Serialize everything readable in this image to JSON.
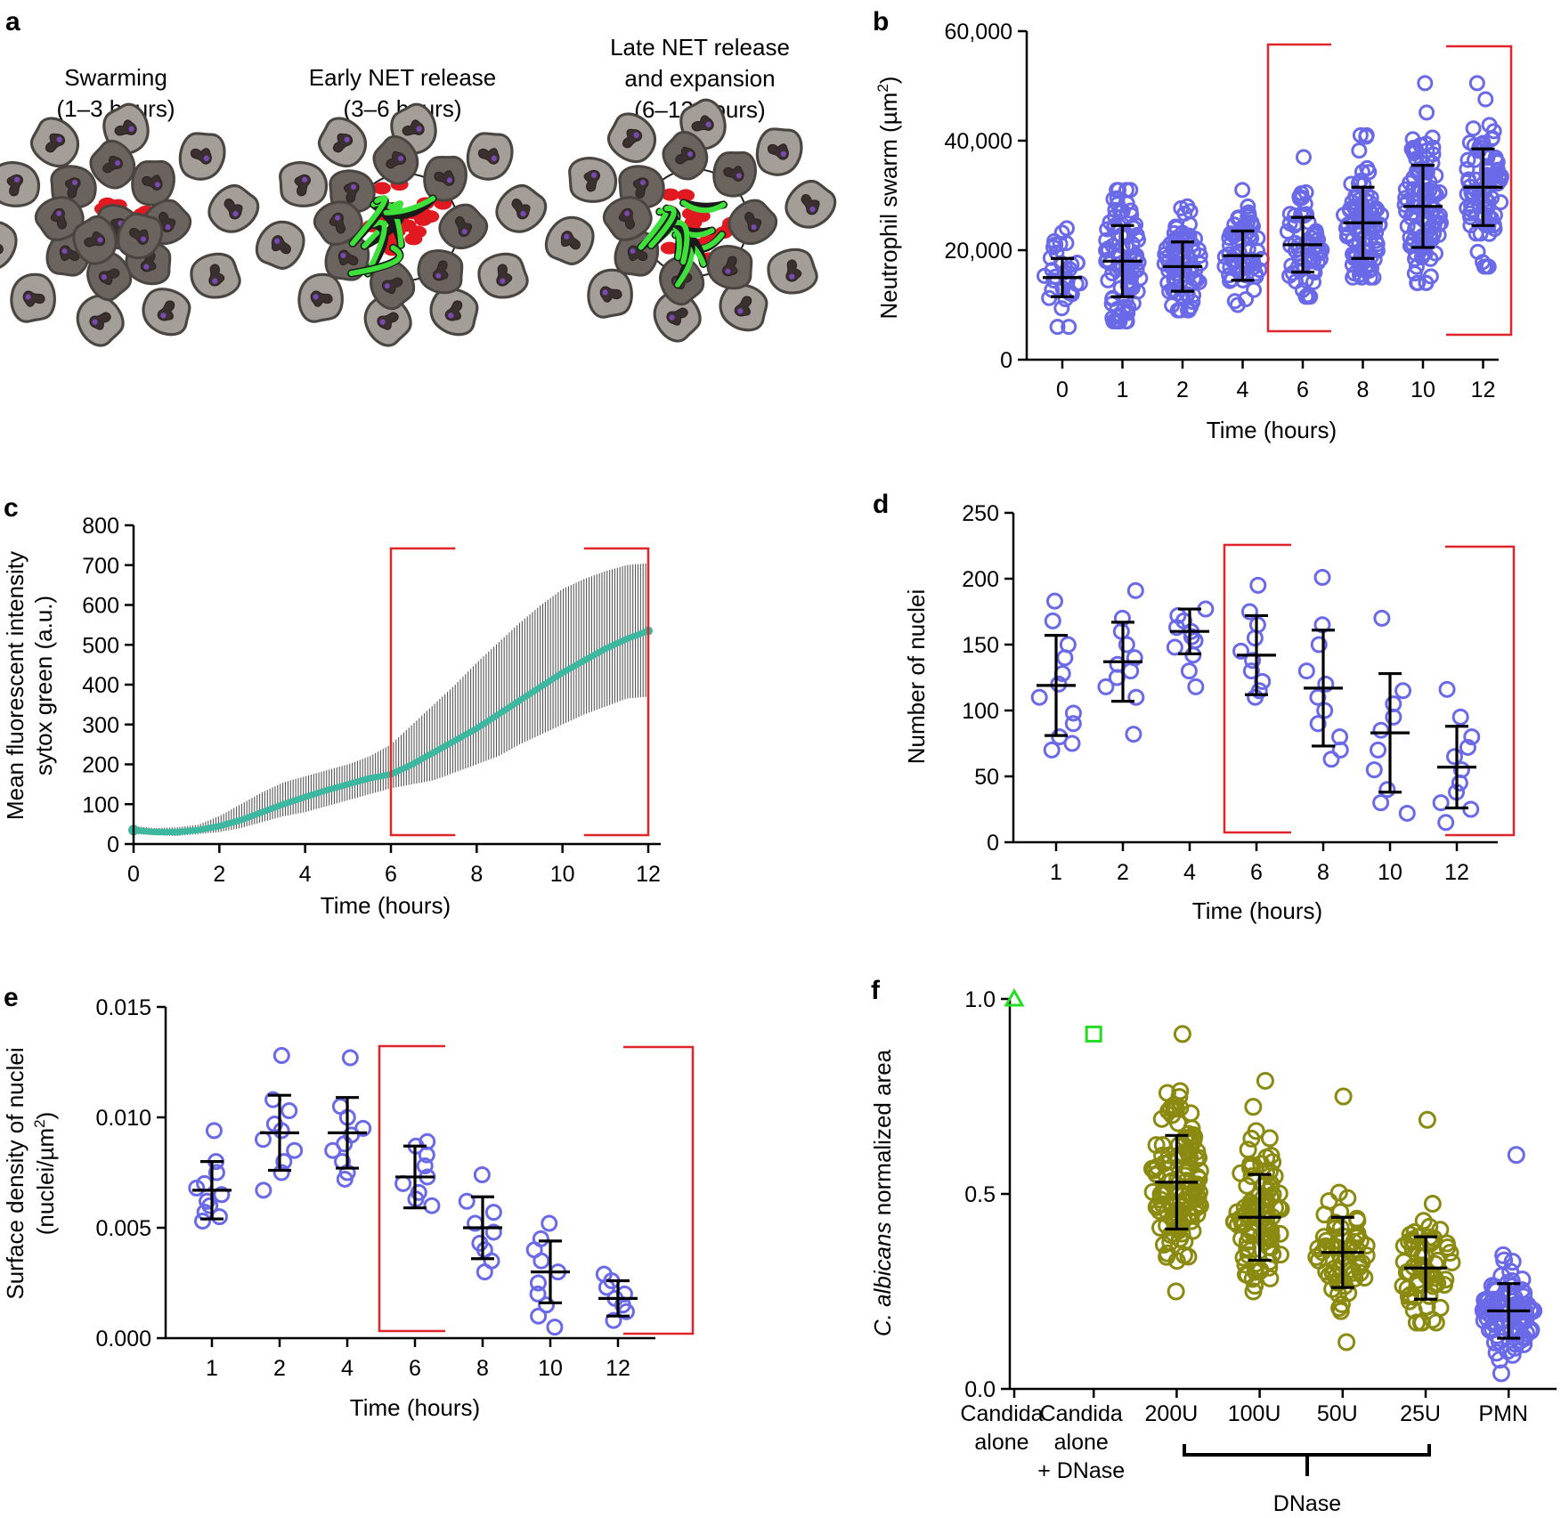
{
  "panel_a": {
    "letter": "a",
    "stages": [
      {
        "line1": "Swarming",
        "line2": "(1–3 hours)",
        "line3": ""
      },
      {
        "line1": "Early NET release",
        "line2": "(3–6 hours)",
        "line3": ""
      },
      {
        "line1": "Late NET release",
        "line2": "and expansion",
        "line3": "(6–12 hours)"
      }
    ]
  },
  "colors": {
    "points": "#6a6ae8",
    "olive": "#8a8a10",
    "bracket": "#e0262a",
    "curve": "#3cb8a0",
    "band": "#555555"
  },
  "chart_data": [
    {
      "id": "b",
      "type": "scatter",
      "letter": "b",
      "title": "",
      "xlabel": "Time (hours)",
      "ylabel_pre": "Neutrophil swarm (µm",
      "ylabel_sup": "2",
      "ylabel_post": ")",
      "categories": [
        "0",
        "1",
        "2",
        "4",
        "6",
        "8",
        "10",
        "12"
      ],
      "ylim": [
        0,
        60000
      ],
      "yticks": [
        0,
        20000,
        40000,
        60000
      ],
      "yticklabels": [
        "0",
        "20,000",
        "40,000",
        "60,000"
      ],
      "means": [
        15000,
        18000,
        17000,
        19000,
        21000,
        25000,
        28000,
        31500
      ],
      "sd": [
        3500,
        6500,
        4500,
        4500,
        5000,
        6500,
        7500,
        7000
      ],
      "n": [
        30,
        90,
        75,
        60,
        60,
        90,
        95,
        80
      ],
      "max": [
        24000,
        31000,
        28000,
        31000,
        37000,
        41000,
        50500,
        50500
      ],
      "min": [
        6000,
        7000,
        9000,
        10000,
        11500,
        15000,
        14000,
        17000
      ],
      "bracket_categories": [
        [
          "6",
          "8"
        ],
        [
          "10",
          "12"
        ]
      ]
    },
    {
      "id": "c",
      "type": "line",
      "letter": "c",
      "title": "",
      "xlabel": "Time (hours)",
      "ylabel1": "Mean fluorescent intensity",
      "ylabel2": "sytox green  (a.u.)",
      "xlim": [
        0,
        12
      ],
      "ylim": [
        0,
        800
      ],
      "xticks": [
        0,
        2,
        4,
        6,
        8,
        10,
        12
      ],
      "yticks": [
        0,
        100,
        200,
        300,
        400,
        500,
        600,
        700,
        800
      ],
      "x": [
        0,
        0.5,
        1,
        1.5,
        2,
        2.5,
        3,
        3.5,
        4,
        4.5,
        5,
        5.5,
        6,
        6.5,
        7,
        7.5,
        8,
        8.5,
        9,
        9.5,
        10,
        10.5,
        11,
        11.5,
        12
      ],
      "mean": [
        35,
        30,
        30,
        35,
        45,
        60,
        80,
        100,
        118,
        135,
        150,
        165,
        175,
        200,
        230,
        260,
        290,
        325,
        360,
        395,
        430,
        460,
        490,
        515,
        535
      ],
      "upper": [
        45,
        40,
        42,
        48,
        70,
        100,
        130,
        155,
        170,
        185,
        200,
        220,
        250,
        300,
        350,
        400,
        455,
        505,
        555,
        600,
        640,
        665,
        685,
        700,
        705
      ],
      "lower": [
        25,
        22,
        20,
        25,
        30,
        40,
        55,
        70,
        80,
        95,
        110,
        125,
        140,
        150,
        160,
        180,
        200,
        220,
        250,
        275,
        300,
        325,
        345,
        365,
        370
      ],
      "bracket_x": [
        [
          6,
          7.5
        ],
        [
          10.5,
          12
        ]
      ]
    },
    {
      "id": "d",
      "type": "scatter",
      "letter": "d",
      "title": "",
      "xlabel": "Time (hours)",
      "ylabel": "Number of nuclei",
      "categories": [
        "1",
        "2",
        "4",
        "6",
        "8",
        "10",
        "12"
      ],
      "ylim": [
        0,
        250
      ],
      "yticks": [
        0,
        50,
        100,
        150,
        200,
        250
      ],
      "yticklabels": [
        "0",
        "50",
        "100",
        "150",
        "200",
        "250"
      ],
      "means": [
        119,
        137,
        160,
        142,
        117,
        83,
        57
      ],
      "sd": [
        38,
        30,
        17,
        30,
        44,
        45,
        31
      ],
      "points": [
        [
          183,
          168,
          150,
          140,
          128,
          120,
          110,
          98,
          90,
          80,
          75,
          70
        ],
        [
          191,
          170,
          160,
          150,
          140,
          135,
          130,
          125,
          118,
          110,
          82
        ],
        [
          177,
          172,
          168,
          163,
          160,
          156,
          153,
          148,
          142,
          130,
          118
        ],
        [
          195,
          175,
          165,
          155,
          145,
          138,
          130,
          122,
          115,
          110
        ],
        [
          201,
          165,
          150,
          130,
          120,
          110,
          100,
          90,
          80,
          70,
          63
        ],
        [
          170,
          115,
          105,
          95,
          85,
          70,
          55,
          40,
          30,
          22
        ],
        [
          116,
          95,
          80,
          72,
          65,
          55,
          45,
          38,
          30,
          25,
          15
        ]
      ],
      "bracket_categories": [
        [
          "6",
          "8"
        ],
        [
          "12",
          "12"
        ]
      ]
    },
    {
      "id": "e",
      "type": "scatter",
      "letter": "e",
      "title": "",
      "xlabel": "Time (hours)",
      "ylabel1": "Surface density of nuclei",
      "ylabel2_pre": "(nuclei/µm",
      "ylabel2_sup": "2",
      "ylabel2_post": ")",
      "categories": [
        "1",
        "2",
        "4",
        "6",
        "8",
        "10",
        "12"
      ],
      "ylim": [
        0,
        0.015
      ],
      "yticks": [
        0,
        0.005,
        0.01,
        0.015
      ],
      "yticklabels": [
        "0.000",
        "0.005",
        "0.010",
        "0.015"
      ],
      "means": [
        0.0067,
        0.0093,
        0.0093,
        0.0073,
        0.005,
        0.003,
        0.0018
      ],
      "sd": [
        0.0013,
        0.0017,
        0.0016,
        0.0014,
        0.0014,
        0.0014,
        0.0008
      ],
      "points": [
        [
          0.0094,
          0.008,
          0.0075,
          0.007,
          0.0068,
          0.0065,
          0.0062,
          0.006,
          0.0057,
          0.0055,
          0.0053
        ],
        [
          0.0128,
          0.0108,
          0.0103,
          0.0097,
          0.0094,
          0.009,
          0.0085,
          0.008,
          0.0075,
          0.0067
        ],
        [
          0.0127,
          0.0105,
          0.01,
          0.0095,
          0.0092,
          0.0088,
          0.0085,
          0.008,
          0.0075,
          0.0072
        ],
        [
          0.0089,
          0.0087,
          0.0083,
          0.0078,
          0.0073,
          0.007,
          0.0066,
          0.0063,
          0.006
        ],
        [
          0.0074,
          0.0062,
          0.0057,
          0.0052,
          0.0048,
          0.0043,
          0.004,
          0.0035,
          0.003
        ],
        [
          0.0052,
          0.0045,
          0.004,
          0.0035,
          0.003,
          0.0025,
          0.002,
          0.0015,
          0.001,
          0.0005
        ],
        [
          0.0029,
          0.0026,
          0.0023,
          0.002,
          0.0018,
          0.0015,
          0.0012,
          0.0008
        ]
      ],
      "bracket_categories": [
        [
          "6",
          "8"
        ],
        [
          "12",
          "12"
        ]
      ]
    },
    {
      "id": "f",
      "type": "scatter",
      "letter": "f",
      "title": "",
      "xlabel": "",
      "ylabel_italic": "C. albicans",
      "ylabel_rest": " normalized area",
      "categories": [
        "Candida alone",
        "Candida alone + DNase",
        "200U",
        "100U",
        "50U",
        "25U",
        "PMN"
      ],
      "category_lines": [
        [
          "Candida",
          "alone",
          ""
        ],
        [
          "Candida",
          "alone",
          "+ DNase"
        ],
        [
          "200U",
          "",
          ""
        ],
        [
          "100U",
          "",
          ""
        ],
        [
          "50U",
          "",
          ""
        ],
        [
          "25U",
          "",
          ""
        ],
        [
          "PMN",
          "",
          ""
        ]
      ],
      "group_label": "DNase",
      "ylim": [
        0,
        1
      ],
      "yticks": [
        0,
        0.5,
        1
      ],
      "yticklabels": [
        "0.0",
        "0.5",
        "1.0"
      ],
      "markers": [
        "triangle",
        "square",
        "circle",
        "circle",
        "circle",
        "circle",
        "circle"
      ],
      "single_values": [
        1.0,
        0.91
      ],
      "means": [
        null,
        null,
        0.53,
        0.44,
        0.35,
        0.31,
        0.2
      ],
      "sd": [
        null,
        null,
        0.12,
        0.11,
        0.09,
        0.08,
        0.07
      ],
      "max": [
        null,
        null,
        0.91,
        0.79,
        0.75,
        0.69,
        0.6
      ],
      "min": [
        null,
        null,
        0.25,
        0.25,
        0.12,
        0.17,
        0.04
      ],
      "n": [
        1,
        1,
        120,
        90,
        60,
        60,
        90
      ]
    }
  ]
}
